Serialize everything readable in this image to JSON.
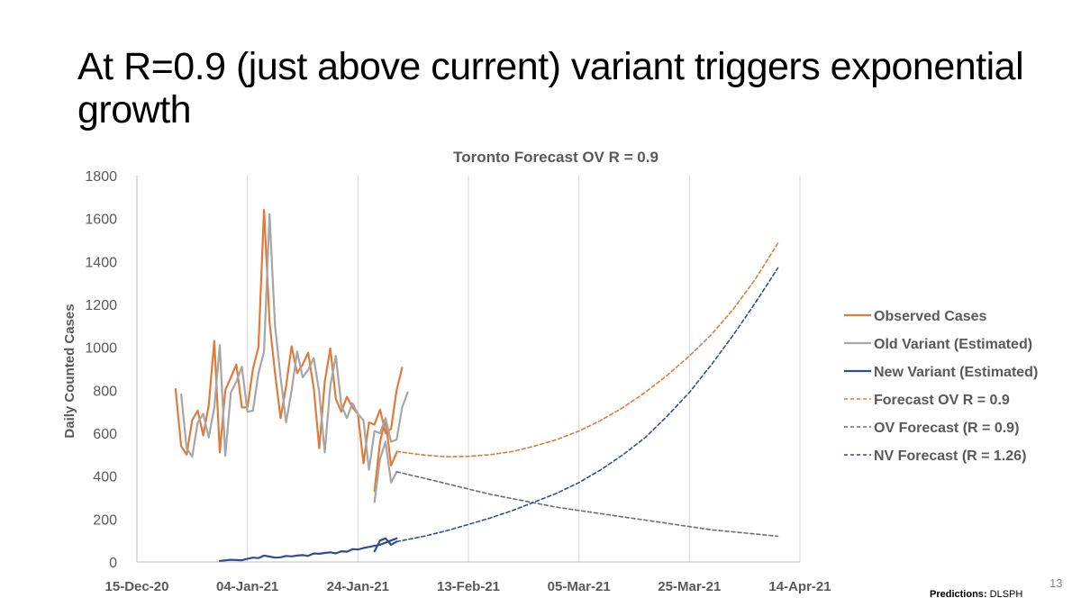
{
  "slide": {
    "title": "At R=0.9 (just above current) variant triggers exponential growth",
    "number": "13",
    "credit_label": "Predictions:",
    "credit_value": "DLSPH"
  },
  "chart_data": {
    "type": "line",
    "title": "Toronto Forecast OV R = 0.9",
    "xlabel": "",
    "ylabel": "Daily Counted Cases",
    "xlim_days": [
      0,
      120
    ],
    "ylim": [
      0,
      1800
    ],
    "yticks": [
      0,
      200,
      400,
      600,
      800,
      1000,
      1200,
      1400,
      1600,
      1800
    ],
    "xticks": [
      {
        "day": 0,
        "label": "15-Dec-20"
      },
      {
        "day": 20,
        "label": "04-Jan-21"
      },
      {
        "day": 40,
        "label": "24-Jan-21"
      },
      {
        "day": 60,
        "label": "13-Feb-21"
      },
      {
        "day": 80,
        "label": "05-Mar-21"
      },
      {
        "day": 100,
        "label": "25-Mar-21"
      },
      {
        "day": 120,
        "label": "14-Apr-21"
      }
    ],
    "grid": "vertical",
    "legend_position": "right",
    "x_units": "days since 15-Dec-20",
    "series": [
      {
        "name": "Observed Cases",
        "color": "#E07B39",
        "dash": "solid",
        "segments": [
          {
            "x": [
              7,
              8,
              9,
              10,
              11,
              12,
              13,
              14,
              15,
              16,
              17,
              18,
              19,
              20,
              21,
              22,
              23,
              24,
              25,
              26,
              27,
              28,
              29,
              30,
              31,
              32,
              33,
              34,
              35,
              36,
              37,
              38,
              39,
              40,
              41,
              42,
              43,
              44,
              45,
              46,
              47,
              48,
              49,
              50,
              51
            ],
            "y": [
              805,
              540,
              500,
              660,
              705,
              590,
              730,
              1030,
              510,
              800,
              860,
              920,
              720,
              720,
              900,
              1000,
              1640,
              1120,
              880,
              670,
              820,
              1005,
              880,
              920,
              975,
              810,
              530,
              840,
              995,
              760,
              700,
              770,
              720,
              690,
              460,
              650,
              640,
              710,
              600,
              620,
              800,
              905,
              null,
              null,
              null
            ]
          },
          {
            "x": [
              43,
              44,
              45,
              46,
              47
            ],
            "y": [
              330,
              560,
              665,
              450,
              510
            ]
          }
        ]
      },
      {
        "name": "Old Variant (Estimated)",
        "color": "#A6A6A6",
        "dash": "solid",
        "segments": [
          {
            "x": [
              8,
              9,
              10,
              11,
              12,
              13,
              14,
              15,
              16,
              17,
              18,
              19,
              20,
              21,
              22,
              23,
              24,
              25,
              26,
              27,
              28,
              29,
              30,
              31,
              32,
              33,
              34,
              35,
              36,
              37,
              38,
              39,
              40,
              41,
              42,
              43,
              44,
              45,
              46,
              47,
              48,
              49,
              50,
              51
            ],
            "y": [
              780,
              530,
              490,
              650,
              690,
              580,
              720,
              1010,
              495,
              790,
              840,
              910,
              700,
              705,
              880,
              980,
              1620,
              1100,
              860,
              650,
              800,
              980,
              860,
              895,
              950,
              790,
              510,
              820,
              960,
              730,
              670,
              740,
              690,
              660,
              430,
              610,
              600,
              670,
              560,
              570,
              720,
              790,
              null,
              null
            ]
          },
          {
            "x": [
              43,
              44,
              45,
              46,
              47
            ],
            "y": [
              280,
              480,
              560,
              370,
              420
            ]
          }
        ]
      },
      {
        "name": "New Variant (Estimated)",
        "color": "#2F4E8C",
        "dash": "solid",
        "segments": [
          {
            "x": [
              15,
              17,
              19,
              20,
              21,
              22,
              23,
              24,
              25,
              26,
              27,
              28,
              29,
              30,
              31,
              32,
              33,
              34,
              35,
              36,
              37,
              38,
              39,
              40,
              41,
              42,
              43,
              44,
              45,
              46,
              47,
              48,
              49,
              50
            ],
            "y": [
              5,
              10,
              8,
              15,
              20,
              18,
              30,
              25,
              20,
              22,
              28,
              26,
              30,
              32,
              28,
              40,
              38,
              42,
              45,
              40,
              50,
              48,
              60,
              58,
              65,
              70,
              75,
              80,
              90,
              100,
              110,
              null,
              null,
              null
            ]
          },
          {
            "x": [
              43,
              44,
              45,
              46,
              47
            ],
            "y": [
              50,
              100,
              110,
              80,
              95
            ]
          }
        ]
      },
      {
        "name": "Forecast OV R = 0.9",
        "color": "#E07B39",
        "dash": "dash",
        "segments": [
          {
            "x": [
              47,
              52,
              56,
              60,
              64,
              68,
              72,
              76,
              80,
              84,
              88,
              92,
              96,
              100,
              104,
              108,
              112,
              116
            ],
            "y": [
              515,
              498,
              490,
              492,
              500,
              515,
              540,
              570,
              610,
              660,
              720,
              790,
              870,
              960,
              1060,
              1180,
              1320,
              1485
            ]
          }
        ]
      },
      {
        "name": "OV Forecast (R = 0.9)",
        "color": "#6E6E6E",
        "dash": "dash",
        "segments": [
          {
            "x": [
              47,
              52,
              56,
              60,
              64,
              68,
              72,
              76,
              80,
              84,
              88,
              92,
              96,
              100,
              104,
              108,
              112,
              116
            ],
            "y": [
              420,
              390,
              365,
              340,
              315,
              295,
              275,
              255,
              240,
              225,
              210,
              195,
              180,
              165,
              150,
              140,
              130,
              120
            ]
          }
        ]
      },
      {
        "name": "NV Forecast (R = 1.26)",
        "color": "#2F4E8C",
        "dash": "dash",
        "segments": [
          {
            "x": [
              47,
              52,
              56,
              60,
              64,
              68,
              72,
              76,
              80,
              84,
              88,
              92,
              96,
              100,
              104,
              108,
              112,
              116
            ],
            "y": [
              95,
              120,
              145,
              175,
              205,
              240,
              280,
              320,
              370,
              430,
              500,
              580,
              680,
              790,
              920,
              1060,
              1210,
              1370
            ]
          }
        ]
      }
    ]
  }
}
